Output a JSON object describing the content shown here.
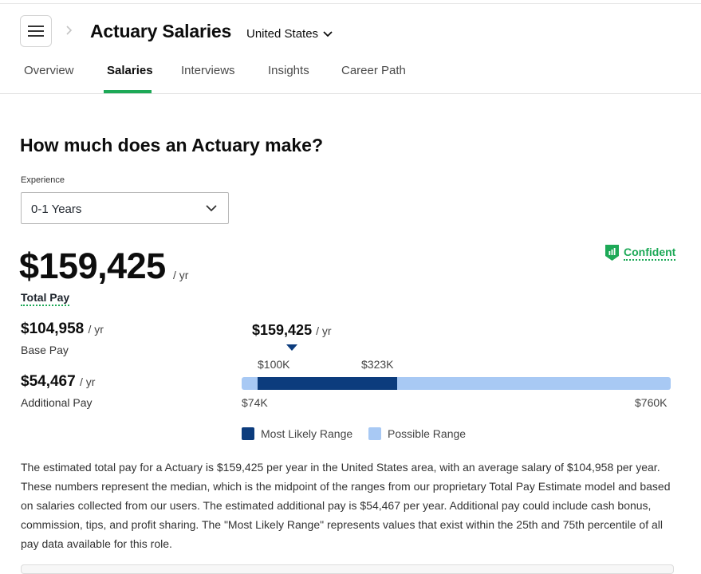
{
  "header": {
    "title": "Actuary Salaries",
    "location": "United States"
  },
  "tabs": [
    {
      "label": "Overview"
    },
    {
      "label": "Salaries",
      "active": true
    },
    {
      "label": "Interviews"
    },
    {
      "label": "Insights"
    },
    {
      "label": "Career Path"
    }
  ],
  "main": {
    "heading": "How much does an Actuary make?",
    "experience_label": "Experience",
    "experience_value": "0-1 Years",
    "total_pay": "$159,425",
    "per_year": "/ yr",
    "total_pay_label": "Total Pay",
    "confidence": "Confident",
    "base_pay": "$104,958",
    "base_pay_label": "Base Pay",
    "additional_pay": "$54,467",
    "additional_pay_label": "Additional Pay",
    "range": {
      "marker_value": "$159,425",
      "likely_low_label": "$100K",
      "likely_high_label": "$323K",
      "min_label": "$74K",
      "max_label": "$760K",
      "min": 74,
      "max": 760,
      "likely_low": 100,
      "likely_high": 323,
      "marker": 159.425
    },
    "legend": {
      "likely": "Most Likely Range",
      "possible": "Possible Range"
    },
    "description": "The estimated total pay for a Actuary is $159,425 per year in the United States area, with an average salary of $104,958 per year. These numbers represent the median, which is the midpoint of the ranges from our proprietary Total Pay Estimate model and based on salaries collected from our users. The estimated additional pay is $54,467 per year. Additional pay could include cash bonus, commission, tips, and profit sharing. The \"Most Likely Range\" represents values that exist within the 25th and 75th percentile of all pay data available for this role."
  },
  "colors": {
    "accent": "#1da957",
    "likely": "#0c3c7d",
    "possible": "#a8c9f4"
  }
}
